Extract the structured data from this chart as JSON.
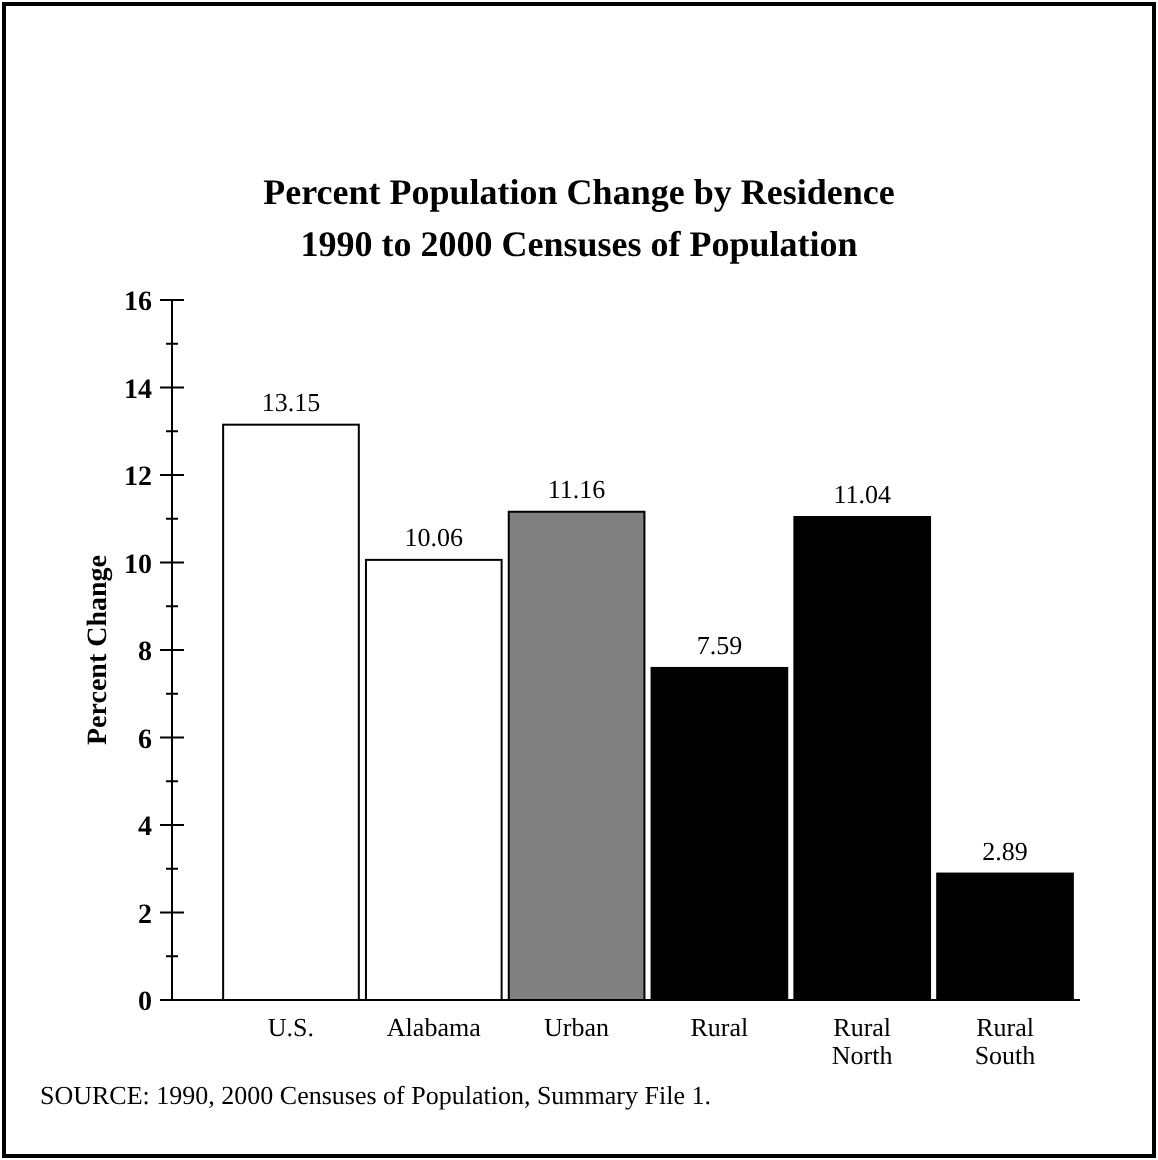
{
  "chart_data": {
    "type": "bar",
    "title": "Percent Population Change by Residence",
    "subtitle": "1990 to 2000 Censuses of Population",
    "ylabel": "Percent Change",
    "categories": [
      "U.S.",
      "Alabama",
      "Urban",
      "Rural",
      "Rural North",
      "Rural South"
    ],
    "values": [
      13.15,
      10.06,
      11.16,
      7.59,
      11.04,
      2.89
    ],
    "colors": [
      "#ffffff",
      "#ffffff",
      "#808080",
      "#000000",
      "#000000",
      "#000000"
    ],
    "ylim": [
      0,
      16
    ],
    "yticks": [
      0,
      2,
      4,
      6,
      8,
      10,
      12,
      14,
      16
    ],
    "grid": false,
    "data_labels": true,
    "annotations": [
      "SOURCE: 1990, 2000 Censuses of Population, Summary File 1."
    ]
  }
}
